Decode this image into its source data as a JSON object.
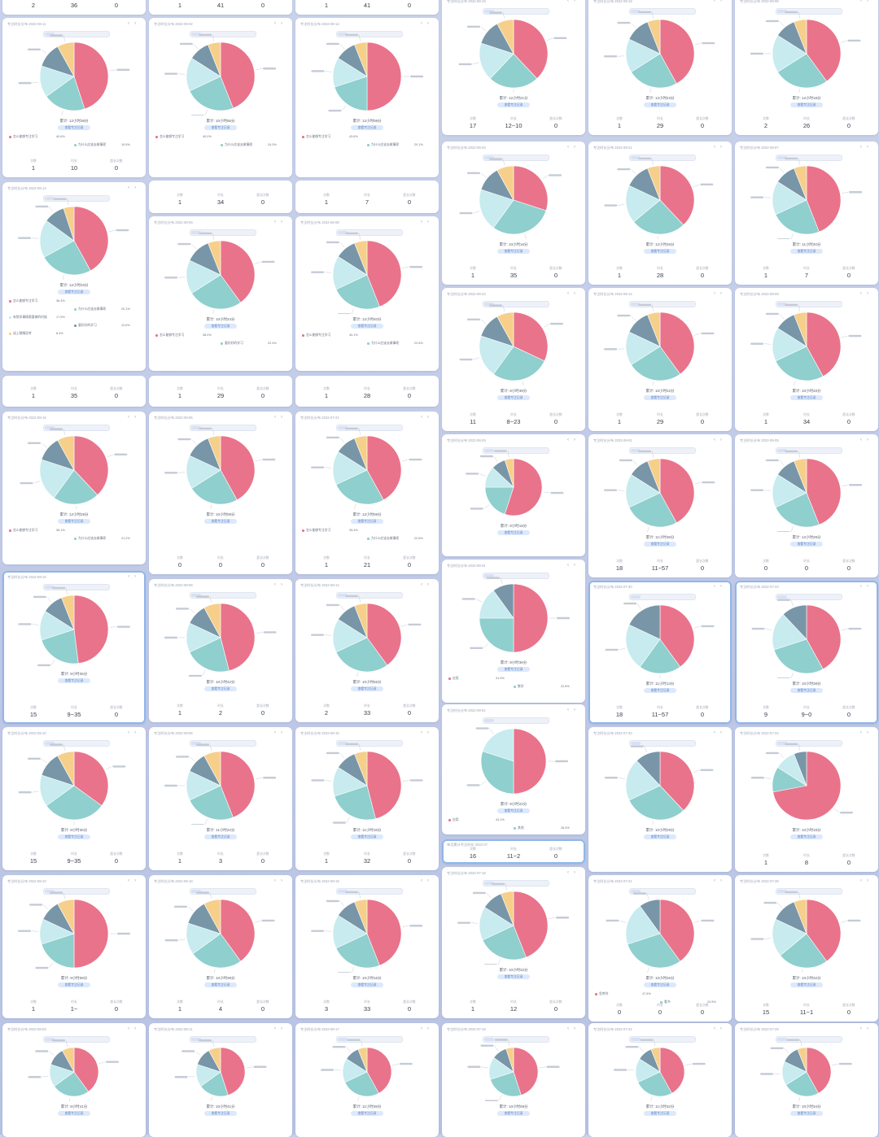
{
  "colors": {
    "pink": "#e9738a",
    "teal": "#8fcfce",
    "light_teal": "#c7ebee",
    "slate": "#7896a8",
    "yellow": "#f6cf8b",
    "gray_blue": "#a8c0cc",
    "background": "#c4cde7",
    "card": "#ffffff",
    "button": "#dde9fb"
  },
  "stat_labels": [
    "次数",
    "时长",
    "超长次数"
  ],
  "button_label": "查看专注记录",
  "columns": [
    {
      "cards": [
        {
          "type": "stats",
          "values": [
            "2",
            "36",
            "0"
          ],
          "units": [
            "",
            "分",
            ""
          ]
        },
        {
          "type": "pie",
          "title": "专注时长分布 2022-08-11",
          "total": "累计: 12小时38分",
          "slices": [
            0.45,
            0.2,
            0.15,
            0.12,
            0.08
          ],
          "apps": [
            [
              "怎么能够专注学习",
              "40.6%"
            ],
            [
              "为什么应该去做事呢",
              "19.5%"
            ]
          ],
          "stats": [
            "1",
            "10",
            "0"
          ]
        },
        {
          "type": "pie",
          "title": "专注时长分布 2022-08-13",
          "total": "累计: 12小时33分",
          "slices": [
            0.42,
            0.25,
            0.18,
            0.1,
            0.05
          ],
          "apps": [
            [
              "怎么能够专注学习",
              "38.3%"
            ],
            [
              "为什么应该去做事呢",
              "20.1%"
            ],
            [
              "有那多事情需要做的时候",
              "17.5%"
            ],
            [
              "要好好的学习",
              "12.6%"
            ],
            [
              "闭上眼睛思考",
              "8.4%"
            ]
          ]
        },
        {
          "type": "stats",
          "values": [
            "1",
            "35",
            "0"
          ],
          "units": [
            "",
            "分",
            ""
          ]
        },
        {
          "type": "pie",
          "title": "专注时长分布 2022-08-16",
          "total": "累计: 12小时29分",
          "slices": [
            0.38,
            0.22,
            0.2,
            0.12,
            0.08
          ],
          "apps": [
            [
              "怎么能够专注学习",
              "36.1%"
            ],
            [
              "为什么应该去做事呢",
              "21.2%"
            ]
          ]
        },
        {
          "type": "pie",
          "title": "专注时长分布 2022-08-10",
          "total": "累计: 9小时35分",
          "slices": [
            0.48,
            0.22,
            0.14,
            0.1,
            0.06
          ],
          "stats": [
            "15",
            "9~35",
            "0"
          ],
          "highlight": true
        },
        {
          "type": "pie",
          "title": "专注时长分布 2022-08-10",
          "total": "累计: 8小时36分",
          "slices": [
            0.35,
            0.3,
            0.15,
            0.12,
            0.08
          ],
          "stats": [
            "15",
            "9~35",
            "0"
          ]
        },
        {
          "type": "pie",
          "title": "专注时长分布 2022-08-10",
          "total": "累计: 9小时08分",
          "slices": [
            0.5,
            0.2,
            0.12,
            0.1,
            0.08
          ],
          "stats": [
            "1",
            "1~",
            "0"
          ]
        },
        {
          "type": "pie",
          "title": "专注时长分布 2022-08-03",
          "total": "累计: 9小时41分",
          "slices": [
            0.4,
            0.25,
            0.15,
            0.12,
            0.08
          ]
        }
      ]
    },
    {
      "cards": [
        {
          "type": "stats",
          "values": [
            "1",
            "41",
            "0"
          ],
          "units": [
            "",
            "分",
            ""
          ]
        },
        {
          "type": "pie",
          "title": "专注时长分布 2022-08-02",
          "total": "累计: 10小时56分",
          "slices": [
            0.44,
            0.24,
            0.16,
            0.1,
            0.06
          ],
          "apps": [
            [
              "怎么能够专注学习",
              "40.0%"
            ],
            [
              "为什么应该去做事呢",
              "24.3%"
            ]
          ]
        },
        {
          "type": "stats",
          "values": [
            "1",
            "34",
            "0"
          ],
          "units": [
            "",
            "分",
            ""
          ]
        },
        {
          "type": "pie",
          "title": "专注时长分布 2022-08-09",
          "total": "累计: 10小时24分",
          "slices": [
            0.4,
            0.26,
            0.16,
            0.12,
            0.06
          ],
          "apps": [
            [
              "怎么能够专注学习",
              "38.0%"
            ],
            [
              "要好好的学习",
              "22.4%"
            ]
          ]
        },
        {
          "type": "stats",
          "values": [
            "1",
            "29",
            "0"
          ],
          "units": [
            "",
            "分",
            ""
          ]
        },
        {
          "type": "pie",
          "title": "专注时长分布 2022-08-05",
          "total": "累计: 10小时08分",
          "slices": [
            0.42,
            0.24,
            0.16,
            0.12,
            0.06
          ],
          "stats": [
            "0",
            "0",
            "0"
          ]
        },
        {
          "type": "pie",
          "title": "专注时长分布 2022-08-08",
          "total": "累计: 10小时42分",
          "slices": [
            0.46,
            0.22,
            0.14,
            0.1,
            0.08
          ],
          "stats": [
            "1",
            "2",
            "0"
          ]
        },
        {
          "type": "pie",
          "title": "专注时长分布 2022-08-06",
          "total": "累计: 11小时22分",
          "slices": [
            0.44,
            0.24,
            0.14,
            0.1,
            0.08
          ],
          "stats": [
            "1",
            "3",
            "0"
          ]
        },
        {
          "type": "pie",
          "title": "专注时长分布 2022-08-18",
          "total": "累计: 10小时38分",
          "slices": [
            0.4,
            0.25,
            0.15,
            0.12,
            0.08
          ],
          "stats": [
            "1",
            "4",
            "0"
          ]
        },
        {
          "type": "pie",
          "title": "专注时长分布 2022-08-11",
          "total": "累计: 10小时41分",
          "slices": [
            0.45,
            0.2,
            0.15,
            0.12,
            0.08
          ]
        }
      ]
    },
    {
      "cards": [
        {
          "type": "stats",
          "values": [
            "1",
            "41",
            "0"
          ],
          "units": [
            "",
            "分",
            ""
          ]
        },
        {
          "type": "pie",
          "title": "专注时长分布 2022-08-14",
          "total": "累计: 12小时08分",
          "slices": [
            0.5,
            0.2,
            0.14,
            0.1,
            0.06
          ],
          "apps": [
            [
              "怎么能够专注学习",
              "43.6%"
            ],
            [
              "为什么应该去做事呢",
              "20.1%"
            ]
          ]
        },
        {
          "type": "stats",
          "values": [
            "1",
            "7",
            "0"
          ],
          "units": [
            "",
            "分",
            ""
          ]
        },
        {
          "type": "pie",
          "title": "专注时长分布 2022-08-08",
          "total": "累计: 12小时40分",
          "slices": [
            0.44,
            0.24,
            0.16,
            0.1,
            0.06
          ],
          "apps": [
            [
              "怎么能够专注学习",
              "40.1%"
            ],
            [
              "为什么应该去做事呢",
              "22.8%"
            ]
          ]
        },
        {
          "type": "stats",
          "values": [
            "1",
            "28",
            "0"
          ],
          "units": [
            "",
            "分",
            ""
          ]
        },
        {
          "type": "pie",
          "title": "专注时长分布 2022-07-21",
          "total": "累计: 12小时08分",
          "slices": [
            0.42,
            0.26,
            0.16,
            0.1,
            0.06
          ],
          "apps": [
            [
              "怎么能够专注学习",
              "39.4%"
            ],
            [
              "为什么应该去做事呢",
              "22.6%"
            ]
          ],
          "stats": [
            "1",
            "21",
            "0"
          ]
        },
        {
          "type": "pie",
          "title": "专注时长分布 2022-08-12",
          "total": "累计: 10小时55分",
          "slices": [
            0.4,
            0.28,
            0.16,
            0.1,
            0.06
          ],
          "stats": [
            "2",
            "33",
            "0"
          ]
        },
        {
          "type": "pie",
          "title": "专注时长分布 2022-08-15",
          "total": "累计: 11小时18分",
          "slices": [
            0.46,
            0.24,
            0.14,
            0.1,
            0.06
          ],
          "stats": [
            "1",
            "32",
            "0"
          ]
        },
        {
          "type": "pie",
          "title": "专注时长分布 2022-08-19",
          "total": "累计: 10小时16分",
          "slices": [
            0.44,
            0.24,
            0.16,
            0.1,
            0.06
          ],
          "stats": [
            "3",
            "33",
            "0"
          ]
        },
        {
          "type": "pie",
          "title": "专注时长分布 2022-08-17",
          "total": "累计: 11小时38分",
          "slices": [
            0.42,
            0.26,
            0.16,
            0.1,
            0.06
          ]
        }
      ]
    },
    {
      "cards": [
        {
          "type": "pie",
          "title": "专注时长分布 2022-08-19",
          "total": "累计: 12小时21分",
          "slices": [
            0.38,
            0.24,
            0.18,
            0.12,
            0.08
          ],
          "stats": [
            "17",
            "12~10",
            "0"
          ]
        },
        {
          "type": "pie",
          "title": "专注时长分布 2022-08-20",
          "total": "累计: 10小时16分",
          "slices": [
            0.3,
            0.3,
            0.2,
            0.12,
            0.08
          ],
          "stats": [
            "1",
            "35",
            "0"
          ]
        },
        {
          "type": "pie",
          "title": "专注时长分布 2022-08-23",
          "total": "累计: 8小时39分",
          "slices": [
            0.32,
            0.28,
            0.2,
            0.12,
            0.08
          ],
          "stats": [
            "11",
            "8~23",
            "0"
          ]
        },
        {
          "type": "pie",
          "title": "专注时长分布 2022-08-29",
          "total": "累计: 8小时18分",
          "slices": [
            0.55,
            0.2,
            0.12,
            0.08,
            0.05
          ]
        },
        {
          "type": "pie",
          "title": "专注时长分布 2022-08-31",
          "total": "累计: 8小时36分",
          "slices": [
            0.5,
            0.25,
            0.15,
            0.1
          ],
          "apps": [
            [
              "应用",
              "41.9%"
            ],
            [
              "数学",
              "22.8%"
            ]
          ]
        },
        {
          "type": "pie",
          "title": "专注时长分布 2022-09-01",
          "total": "累计: 9小时22分",
          "slices": [
            0.5,
            0.3,
            0.2
          ],
          "apps": [
            [
              "应用",
              "43.1%"
            ],
            [
              "其他",
              "26.4%"
            ]
          ]
        },
        {
          "type": "stats",
          "title": "单月累计专注时长 2022-07",
          "values": [
            "16",
            "11~2",
            "0"
          ],
          "units": [
            "",
            "",
            ""
          ],
          "highlight": true
        },
        {
          "type": "pie",
          "title": "专注时长分布 2022-07-18",
          "total": "累计: 10小时32分",
          "slices": [
            0.44,
            0.24,
            0.16,
            0.1,
            0.06
          ],
          "stats": [
            "1",
            "12",
            "0"
          ]
        },
        {
          "type": "pie",
          "title": "专注时长分布 2022-07-18",
          "total": "累计: 10小时08分",
          "slices": [
            0.45,
            0.25,
            0.15,
            0.1,
            0.05
          ]
        }
      ]
    },
    {
      "cards": [
        {
          "type": "pie",
          "title": "专注时长分布 2022-08-18",
          "total": "累计: 12小时23分",
          "slices": [
            0.42,
            0.24,
            0.16,
            0.12,
            0.06
          ],
          "stats": [
            "1",
            "29",
            "0"
          ]
        },
        {
          "type": "pie",
          "title": "专注时长分布 2022-08-21",
          "total": "累计: 12小时46分",
          "slices": [
            0.38,
            0.26,
            0.18,
            0.12,
            0.06
          ],
          "stats": [
            "1",
            "28",
            "0"
          ]
        },
        {
          "type": "pie",
          "title": "专注时长分布 2022-08-14",
          "total": "累计: 10小时22分",
          "slices": [
            0.4,
            0.26,
            0.16,
            0.12,
            0.06
          ],
          "stats": [
            "1",
            "29",
            "0"
          ]
        },
        {
          "type": "pie",
          "title": "专注时长分布 2022-08-02",
          "total": "累计: 11小时38分",
          "slices": [
            0.42,
            0.26,
            0.16,
            0.1,
            0.06
          ],
          "stats": [
            "18",
            "11~57",
            "0"
          ]
        },
        {
          "type": "pie",
          "title": "专注时长分布 2022-07-30",
          "total": "累计: 11小时13分",
          "slices": [
            0.4,
            0.2,
            0.22,
            0.18
          ],
          "stats": [
            "18",
            "11~57",
            "0"
          ],
          "highlight": true
        },
        {
          "type": "pie",
          "title": "专注时长分布 2022-07-20",
          "total": "累计: 10小时29分",
          "slices": [
            0.38,
            0.3,
            0.2,
            0.12
          ]
        },
        {
          "type": "pie",
          "title": "专注时长分布 2022-07-21",
          "total": "累计: 10小时26分",
          "slices": [
            0.4,
            0.3,
            0.2,
            0.1
          ],
          "apps": [
            [
              "思考时",
              "47.5%"
            ],
            [
              "看书",
              "24.5%"
            ]
          ],
          "stats": [
            "0",
            "0",
            "0"
          ]
        },
        {
          "type": "pie",
          "title": "专注时长分布 2022-07-22",
          "total": "累计: 11小时32分",
          "slices": [
            0.42,
            0.26,
            0.16,
            0.1,
            0.06
          ]
        }
      ]
    },
    {
      "cards": [
        {
          "type": "pie",
          "title": "专注时长分布 2022-08-08",
          "total": "累计: 12小时18分",
          "slices": [
            0.4,
            0.26,
            0.18,
            0.1,
            0.06
          ],
          "stats": [
            "2",
            "26",
            "0"
          ]
        },
        {
          "type": "pie",
          "title": "专注时长分布 2022-08-07",
          "total": "累计: 11小时20分",
          "slices": [
            0.44,
            0.24,
            0.16,
            0.1,
            0.06
          ],
          "stats": [
            "1",
            "7",
            "0"
          ]
        },
        {
          "type": "pie",
          "title": "专注时长分布 2022-08-09",
          "total": "累计: 10小时33分",
          "slices": [
            0.42,
            0.26,
            0.16,
            0.1,
            0.06
          ],
          "stats": [
            "1",
            "34",
            "0"
          ]
        },
        {
          "type": "pie",
          "title": "专注时长分布 2022-08-05",
          "total": "累计: 12小时28分",
          "slices": [
            0.44,
            0.24,
            0.16,
            0.1,
            0.06
          ],
          "stats": [
            "0",
            "0",
            "0"
          ]
        },
        {
          "type": "pie",
          "title": "专注时长分布 2022-07-23",
          "total": "累计: 10小时38分",
          "slices": [
            0.42,
            0.28,
            0.18,
            0.12
          ],
          "stats": [
            "9",
            "9~0",
            "0"
          ],
          "highlight": true
        },
        {
          "type": "pie",
          "title": "专注时长分布 2022-07-24",
          "total": "累计: 10小时18分",
          "slices": [
            0.72,
            0.12,
            0.1,
            0.06
          ],
          "stats": [
            "1",
            "8",
            "0"
          ]
        },
        {
          "type": "pie",
          "title": "专注时长分布 2022-07-28",
          "total": "累计: 10小时32分",
          "slices": [
            0.4,
            0.24,
            0.18,
            0.12,
            0.06
          ],
          "stats": [
            "15",
            "11~1",
            "0"
          ]
        },
        {
          "type": "pie",
          "title": "专注时长分布 2022-07-29",
          "total": "累计: 10小时34分",
          "slices": [
            0.42,
            0.24,
            0.16,
            0.12,
            0.06
          ]
        }
      ]
    }
  ]
}
